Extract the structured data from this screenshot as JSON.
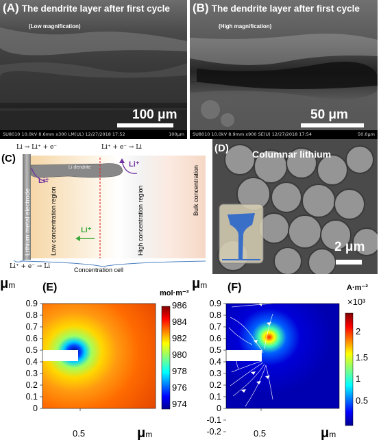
{
  "panels": {
    "A": {
      "label": "(A)",
      "title": "The dendrite layer after first cycle",
      "subtitle": "(Low magnification)",
      "scale": "100 μm",
      "caption_left": "SU8010 10.0kV 8.6mm x300 LM(UL) 12/27/2018 17:52",
      "caption_right": "100μm"
    },
    "B": {
      "label": "(B)",
      "title": "The dendrite layer after first cycle",
      "subtitle": "(High magnification)",
      "scale": "50 μm",
      "caption_left": "SU8010 10.0kV 8.9mm x900 SE(U) 12/27/2018 17:54",
      "caption_right": "50.0μm"
    },
    "C": {
      "label": "(C)",
      "top_left_formula": "Li → Li⁺ + e⁻",
      "top_right_formula": "Li⁺ + e⁻ → Li",
      "bottom_formula": "Li⁺ + e⁻ → Li",
      "electrode": "Lithium metal electrode",
      "dendrite": "Li dendrite",
      "ion1": "Li⁺",
      "ion2": "Li⁺",
      "ion3": "Li⁺",
      "low_region": "Low concentration region",
      "high_region": "High concentration region",
      "bulk": "Bulk concentration",
      "cell": "Concentration cell"
    },
    "D": {
      "label": "(D)",
      "title": "Columnar lithium",
      "scale": "2 μm"
    },
    "E": {
      "label": "(E)",
      "axis_symbol": "μ",
      "axis_unit": "m",
      "x_ticks": [
        "0.5"
      ],
      "y_ticks": [
        "0.9",
        "0.8",
        "0.7",
        "0.6",
        "0.5",
        "0.4",
        "0.3",
        "0.2",
        "0.1",
        "0"
      ],
      "colorbar_unit": "mol·m⁻³",
      "colorbar_ticks": [
        "986",
        "984",
        "982",
        "980",
        "978",
        "976",
        "974"
      ]
    },
    "F": {
      "label": "(F)",
      "axis_symbol": "μ",
      "axis_unit": "m",
      "x_ticks": [
        "0.5"
      ],
      "y_ticks": [
        "0.9",
        "0.8",
        "0.7",
        "0.6",
        "0.5",
        "0.4",
        "0.3",
        "0.2",
        "0.1",
        "0",
        "-0.1",
        "-0.2"
      ],
      "colorbar_unit": "A·m⁻²",
      "colorbar_exp": "×10³",
      "colorbar_ticks": [
        "2",
        "1.5",
        "1",
        "0.5"
      ]
    }
  },
  "colors": {
    "jet_low": "#00008f",
    "jet_high": "#800000",
    "electrode": "#9a9a9a",
    "dendrite": "#8a8a8a",
    "ion_arrow": "#7030a0",
    "diffusion_arrow": "#3aa83a",
    "divider": "#e03030"
  }
}
